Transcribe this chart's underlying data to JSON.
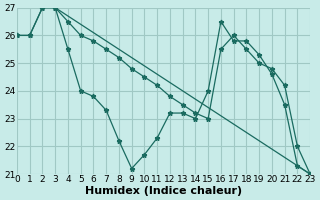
{
  "xlabel": "Humidex (Indice chaleur)",
  "ylabel": "",
  "background_color": "#c8ebe8",
  "grid_color": "#a0c8c4",
  "line_color": "#1a6b60",
  "xlim": [
    0,
    23
  ],
  "ylim": [
    21,
    27
  ],
  "yticks": [
    21,
    22,
    23,
    24,
    25,
    26,
    27
  ],
  "xticks": [
    0,
    1,
    2,
    3,
    4,
    5,
    6,
    7,
    8,
    9,
    10,
    11,
    12,
    13,
    14,
    15,
    16,
    17,
    18,
    19,
    20,
    21,
    22,
    23
  ],
  "series": [
    {
      "x": [
        0,
        1,
        2,
        3,
        4,
        5,
        6,
        7,
        8,
        9,
        10,
        11,
        12,
        13,
        14,
        15,
        16,
        17,
        18,
        19,
        20,
        21,
        22,
        23
      ],
      "y": [
        26,
        26,
        27,
        27,
        25.5,
        24,
        23.8,
        23.3,
        22.2,
        21.2,
        21.7,
        22.3,
        23.2,
        23.2,
        23.0,
        24.0,
        26.5,
        25.8,
        25.8,
        25.3,
        24.6,
        23.5,
        21.3,
        21.0
      ],
      "has_markers": true
    },
    {
      "x": [
        0,
        1,
        2,
        3,
        4,
        5,
        6,
        7,
        8,
        9,
        10,
        11,
        12,
        13,
        14,
        15,
        16,
        17,
        18,
        19,
        20,
        21,
        22,
        23
      ],
      "y": [
        26,
        26,
        27,
        27,
        26.5,
        26,
        25.8,
        25.5,
        25.2,
        24.8,
        24.5,
        24.2,
        23.8,
        23.5,
        23.2,
        23.0,
        25.5,
        26.0,
        25.5,
        25.0,
        24.8,
        24.2,
        22.0,
        21.0
      ],
      "has_markers": true
    },
    {
      "x": [
        3,
        23
      ],
      "y": [
        27,
        21.0
      ],
      "has_markers": false
    }
  ],
  "xlabel_fontsize": 8,
  "tick_fontsize": 6.5
}
